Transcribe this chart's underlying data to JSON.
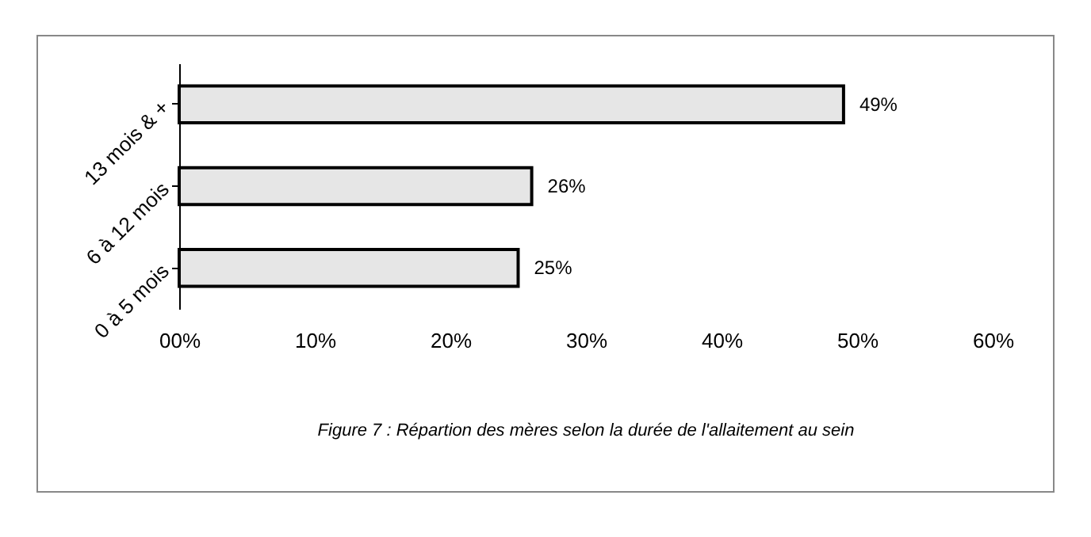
{
  "chart_data": {
    "type": "bar",
    "orientation": "horizontal",
    "categories": [
      "13 mois & +",
      "6 à 12 mois",
      "0 à 5 mois"
    ],
    "values": [
      49,
      26,
      25
    ],
    "color": "#e6e6e6",
    "value_labels": [
      "49%",
      "26%",
      "25%"
    ],
    "xlim": [
      0,
      60
    ],
    "xticks": [
      {
        "value": 0,
        "label": "00%"
      },
      {
        "value": 10,
        "label": "10%"
      },
      {
        "value": 20,
        "label": "20%"
      },
      {
        "value": 30,
        "label": "30%"
      },
      {
        "value": 40,
        "label": "40%"
      },
      {
        "value": 50,
        "label": "50%"
      },
      {
        "value": 60,
        "label": "60%"
      }
    ],
    "grid": false,
    "annotations": [
      "Figure 7 : Répartion des mères selon la durée de l'allaitement au sein"
    ]
  }
}
